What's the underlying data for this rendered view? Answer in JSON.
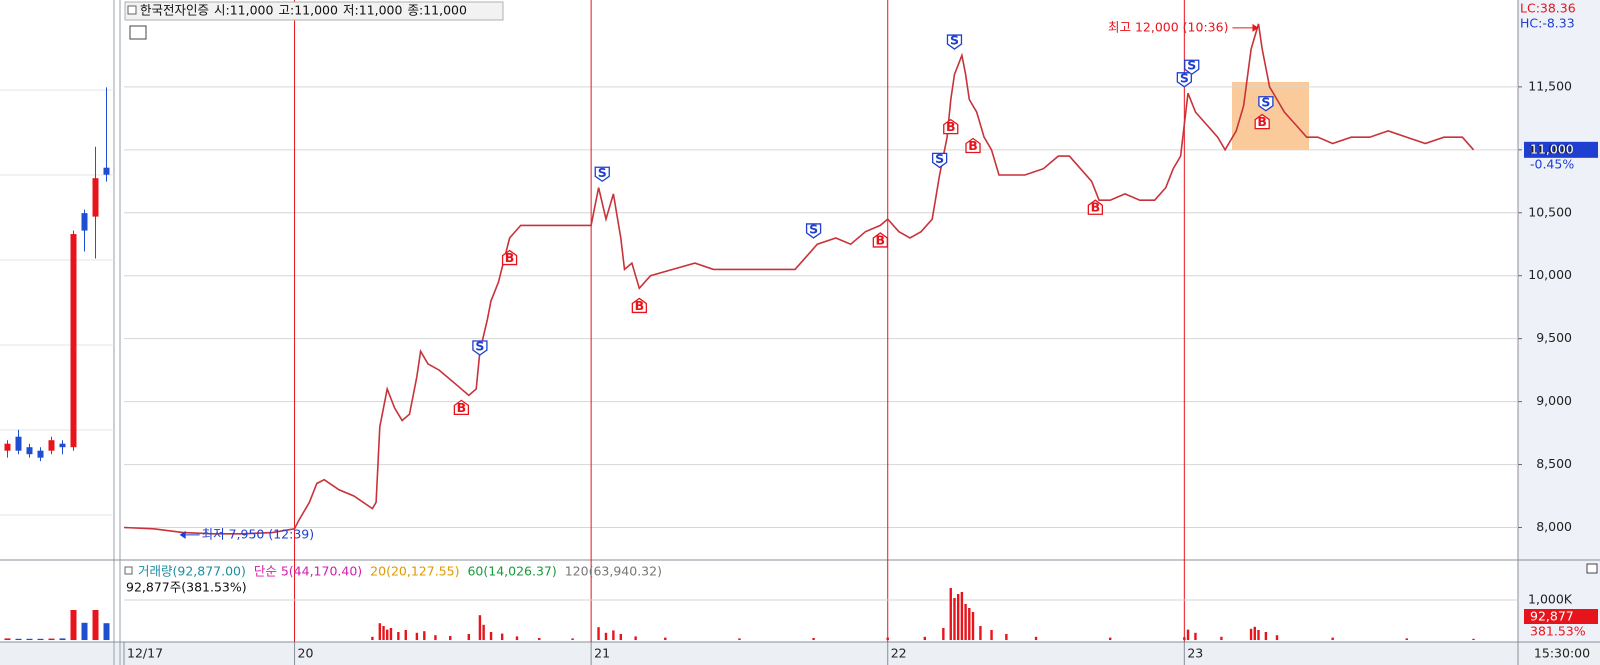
{
  "header": {
    "title": "한국전자인증",
    "ohlc": [
      "시:11,000",
      "고:11,000",
      "저:11,000",
      "종:11,000"
    ]
  },
  "chart_data": [
    {
      "type": "candlestick",
      "open": [
        6550,
        6750,
        6600,
        6550,
        6550,
        6650,
        6600,
        9950,
        9900,
        10600
      ],
      "high": [
        6700,
        6850,
        6650,
        6600,
        6750,
        6700,
        9700,
        10000,
        10900,
        11750
      ],
      "low": [
        6450,
        6500,
        6450,
        6400,
        6500,
        6500,
        6550,
        9400,
        9300,
        10400
      ],
      "close": [
        6650,
        6550,
        6500,
        6450,
        6700,
        6600,
        9650,
        9700,
        10450,
        10500
      ],
      "ylim": [
        5000,
        13000
      ],
      "volume": [
        40,
        30,
        30,
        30,
        35,
        40,
        750,
        430,
        750,
        420
      ],
      "volume_ylim": [
        0,
        1925
      ],
      "up_color": "#e8141c",
      "down_color": "#1e4fd0"
    },
    {
      "type": "line",
      "x": [
        -46,
        -38,
        -30,
        -22,
        -14,
        -6,
        0,
        1,
        4,
        6,
        8,
        12,
        16,
        21,
        22,
        23,
        25,
        27,
        29,
        31,
        33,
        34,
        36,
        39,
        43,
        47,
        49,
        50,
        52,
        53,
        55,
        58,
        61,
        70,
        80,
        82,
        84,
        86,
        88,
        89,
        91,
        93,
        96,
        102,
        108,
        113,
        120,
        128,
        135,
        138,
        141,
        146,
        150,
        154,
        158,
        160,
        163,
        166,
        169,
        172,
        174,
        176,
        177,
        178,
        180,
        181,
        182,
        184,
        186,
        188,
        190,
        193,
        197,
        202,
        206,
        209,
        212,
        215,
        217,
        220,
        224,
        228,
        232,
        235,
        237,
        239,
        241,
        243,
        246,
        249,
        251,
        254,
        256,
        258,
        260,
        261,
        263,
        265,
        267,
        270,
        273,
        276,
        280,
        285,
        290,
        295,
        300,
        305,
        310,
        315,
        318
      ],
      "values": [
        8000,
        7990,
        7960,
        7950,
        7950,
        7960,
        7990,
        8050,
        8200,
        8350,
        8380,
        8300,
        8250,
        8150,
        8200,
        8800,
        9100,
        8950,
        8850,
        8900,
        9200,
        9400,
        9300,
        9250,
        9150,
        9050,
        9100,
        9400,
        9650,
        9800,
        9950,
        10300,
        10400,
        10400,
        10400,
        10700,
        10450,
        10650,
        10300,
        10050,
        10100,
        9900,
        10000,
        10050,
        10100,
        10050,
        10050,
        10050,
        10050,
        10150,
        10250,
        10300,
        10250,
        10350,
        10400,
        10450,
        10350,
        10300,
        10350,
        10450,
        10800,
        11100,
        11400,
        11600,
        11750,
        11600,
        11400,
        11300,
        11100,
        11000,
        10800,
        10800,
        10800,
        10850,
        10950,
        10950,
        10850,
        10750,
        10600,
        10600,
        10650,
        10600,
        10600,
        10700,
        10850,
        10950,
        11450,
        11300,
        11200,
        11100,
        11000,
        11150,
        11350,
        11800,
        12000,
        11800,
        11500,
        11400,
        11300,
        11200,
        11100,
        11100,
        11050,
        11100,
        11100,
        11150,
        11100,
        11050,
        11100,
        11100,
        11000
      ],
      "color": "#c8323a",
      "xlim": [
        -46,
        330
      ],
      "ylim": [
        7750,
        12190
      ],
      "xticks": [
        {
          "value": -46,
          "label": "12/17"
        },
        {
          "value": 0,
          "label": "20"
        },
        {
          "value": 80,
          "label": "21"
        },
        {
          "value": 160,
          "label": "22"
        },
        {
          "value": 240,
          "label": "23"
        }
      ],
      "yticks": [
        {
          "value": 8000,
          "label": "8,000"
        },
        {
          "value": 8500,
          "label": "8,500"
        },
        {
          "value": 9000,
          "label": "9,000"
        },
        {
          "value": 9500,
          "label": "9,500"
        },
        {
          "value": 10000,
          "label": "10,000"
        },
        {
          "value": 10500,
          "label": "10,500"
        },
        {
          "value": 11000,
          "label": "11,000"
        },
        {
          "value": 11500,
          "label": "11,500"
        }
      ],
      "grid": true,
      "signals": [
        {
          "label": "B",
          "x": 45,
          "y": 8970
        },
        {
          "label": "S",
          "x": 50,
          "y": 9410
        },
        {
          "label": "B",
          "x": 58,
          "y": 10160
        },
        {
          "label": "S",
          "x": 83,
          "y": 10790
        },
        {
          "label": "B",
          "x": 93,
          "y": 9780
        },
        {
          "label": "S",
          "x": 140,
          "y": 10340
        },
        {
          "label": "B",
          "x": 158,
          "y": 10300
        },
        {
          "label": "S",
          "x": 174,
          "y": 10900
        },
        {
          "label": "B",
          "x": 177,
          "y": 11200
        },
        {
          "label": "S",
          "x": 178,
          "y": 11840
        },
        {
          "label": "B",
          "x": 183,
          "y": 11050
        },
        {
          "label": "B",
          "x": 216,
          "y": 10560
        },
        {
          "label": "S",
          "x": 240,
          "y": 11540
        },
        {
          "label": "S",
          "x": 242,
          "y": 11640
        },
        {
          "label": "S",
          "x": 262,
          "y": 11350
        },
        {
          "label": "B",
          "x": 261,
          "y": 11240
        }
      ],
      "annotations": [
        {
          "text": "최고 12,000 (10:36)",
          "x": 260,
          "y": 12000,
          "color": "#e8141c",
          "side": "left"
        },
        {
          "text": "최저 7,950 (12:39)",
          "x": -31,
          "y": 7950,
          "color": "#1e3fd0",
          "side": "right"
        }
      ],
      "indicators": [
        {
          "text": "LC:38.36",
          "color": "#e8141c"
        },
        {
          "text": "HC:-8.33",
          "color": "#1e3fd0"
        }
      ],
      "last": {
        "value": 11000,
        "label": "11,000",
        "change": "-0.45%"
      },
      "volume": {
        "x": [
          21,
          23,
          24,
          25,
          26,
          28,
          30,
          33,
          35,
          38,
          42,
          47,
          50,
          51,
          53,
          56,
          60,
          66,
          75,
          82,
          84,
          86,
          88,
          92,
          100,
          120,
          140,
          160,
          170,
          175,
          177,
          178,
          179,
          180,
          181,
          182,
          183,
          185,
          188,
          192,
          200,
          220,
          240,
          241,
          243,
          250,
          258,
          259,
          260,
          262,
          265,
          280,
          300,
          318
        ],
        "values": [
          80,
          420,
          350,
          260,
          300,
          200,
          250,
          180,
          220,
          120,
          100,
          150,
          620,
          380,
          200,
          160,
          90,
          50,
          40,
          320,
          180,
          240,
          150,
          90,
          60,
          40,
          50,
          60,
          80,
          300,
          1300,
          1050,
          1150,
          1200,
          900,
          800,
          700,
          350,
          250,
          150,
          80,
          60,
          70,
          260,
          180,
          80,
          280,
          330,
          250,
          200,
          120,
          60,
          40,
          30
        ],
        "color": "#e8141c",
        "ylim": [
          0,
          1925
        ],
        "yticks": [
          {
            "value": 1000,
            "label": "1,000K"
          }
        ],
        "legend": [
          {
            "text": "거래량(92,877.00)",
            "color": "#1f8ea0"
          },
          {
            "text": "단순 5(44,170.40)",
            "color": "#d21fb0"
          },
          {
            "text": "20(20,127.55)",
            "color": "#e09a00"
          },
          {
            "text": "60(14,026.37)",
            "color": "#1a9a3a"
          },
          {
            "text": "120(63,940.32)",
            "color": "#777777"
          }
        ],
        "summary": "92,877주(381.53%)",
        "last_label": "92,877",
        "last_change": "381.53%"
      },
      "time_label": "15:30:00"
    }
  ]
}
